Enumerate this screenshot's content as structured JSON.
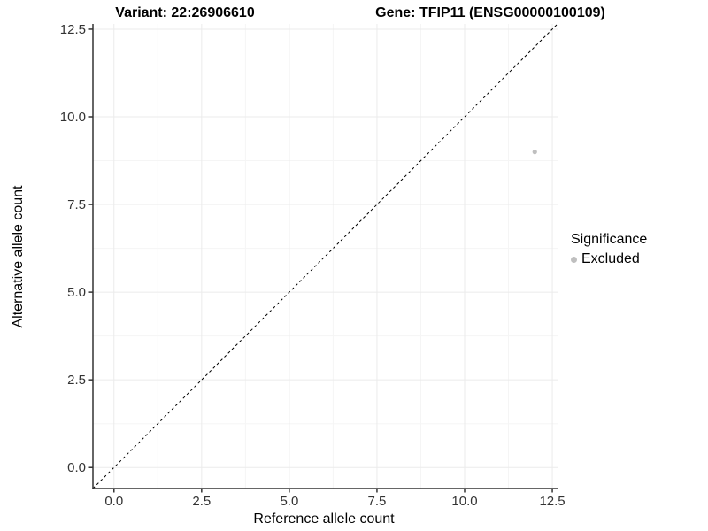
{
  "chart_data": {
    "type": "scatter",
    "title_left": "Variant: 22:26906610",
    "title_right": "Gene: TFIP11 (ENSG00000100109)",
    "xlabel": "Reference allele count",
    "ylabel": "Alternative allele count",
    "xlim": [
      -0.6,
      12.65
    ],
    "ylim": [
      -0.6,
      12.65
    ],
    "xticks": {
      "values": [
        0,
        2.5,
        5,
        7.5,
        10,
        12.5
      ],
      "labels": [
        "0.0",
        "2.5",
        "5.0",
        "7.5",
        "10.0",
        "12.5"
      ]
    },
    "yticks": {
      "values": [
        0,
        2.5,
        5,
        7.5,
        10,
        12.5
      ],
      "labels": [
        "0.0",
        "2.5",
        "5.0",
        "7.5",
        "10.0",
        "12.5"
      ]
    },
    "grid": {
      "major": true,
      "minor": true,
      "legend_position": "right"
    },
    "reference_line": {
      "slope": 1,
      "intercept": 0,
      "linestyle": "dashed",
      "color": "#000000"
    },
    "series": [
      {
        "name": "Excluded",
        "color": "#bfbfbf",
        "points": [
          {
            "x": 12,
            "y": 9
          }
        ]
      }
    ],
    "legend": {
      "title": "Significance",
      "items": [
        {
          "label": "Excluded",
          "color": "#bfbfbf"
        }
      ]
    },
    "colors": {
      "axis_line": "#333333",
      "tick_text": "#333333",
      "grid_major": "#ebebeb",
      "grid_minor": "#f5f5f5",
      "background": "#ffffff"
    }
  }
}
